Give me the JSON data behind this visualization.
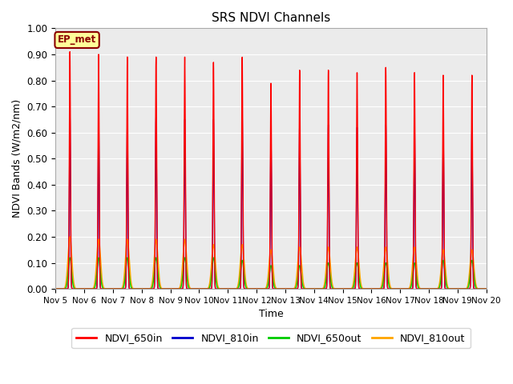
{
  "title": "SRS NDVI Channels",
  "ylabel": "NDVI Bands (W/m2/nm)",
  "xlabel": "Time",
  "ylim": [
    0.0,
    1.0
  ],
  "yticks": [
    0.0,
    0.1,
    0.2,
    0.3,
    0.4,
    0.5,
    0.6,
    0.7,
    0.8,
    0.9,
    1.0
  ],
  "date_labels": [
    "Nov 5",
    "Nov 6",
    "Nov 7",
    "Nov 8",
    "Nov 9",
    "Nov 10",
    "Nov 11",
    "Nov 12",
    "Nov 13",
    "Nov 14",
    "Nov 15",
    "Nov 16",
    "Nov 17",
    "Nov 18",
    "Nov 19",
    "Nov 20"
  ],
  "annotation_text": "EP_met",
  "annotation_color": "#8B0000",
  "annotation_bg": "#FFFF99",
  "bg_color": "#EBEBEB",
  "line_colors": {
    "NDVI_650in": "#FF0000",
    "NDVI_810in": "#0000CC",
    "NDVI_650out": "#00CC00",
    "NDVI_810out": "#FFA500"
  },
  "peak_650in": [
    0.91,
    0.9,
    0.89,
    0.89,
    0.89,
    0.87,
    0.89,
    0.79,
    0.84,
    0.84,
    0.83,
    0.85,
    0.83,
    0.82,
    0.82
  ],
  "peak_810in": [
    0.67,
    0.66,
    0.66,
    0.66,
    0.65,
    0.65,
    0.67,
    0.6,
    0.63,
    0.63,
    0.62,
    0.63,
    0.62,
    0.62,
    0.62
  ],
  "peak_650out": [
    0.12,
    0.12,
    0.12,
    0.12,
    0.12,
    0.12,
    0.11,
    0.09,
    0.09,
    0.1,
    0.1,
    0.1,
    0.1,
    0.11,
    0.11
  ],
  "peak_810out": [
    0.2,
    0.19,
    0.19,
    0.19,
    0.19,
    0.17,
    0.17,
    0.15,
    0.16,
    0.16,
    0.16,
    0.16,
    0.16,
    0.15,
    0.15
  ],
  "num_days": 15,
  "legend_entries": [
    "NDVI_650in",
    "NDVI_810in",
    "NDVI_650out",
    "NDVI_810out"
  ]
}
